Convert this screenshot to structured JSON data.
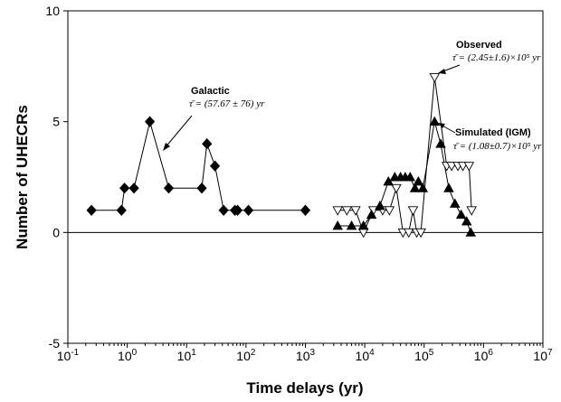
{
  "chart_data": {
    "type": "scatter",
    "xlabel": "Time delays (yr)",
    "ylabel": "Number of UHECRs",
    "xscale": "log",
    "xlim": [
      0.1,
      10000000
    ],
    "ylim": [
      -5,
      10
    ],
    "x_ticks": [
      "10-1",
      "100",
      "101",
      "102",
      "103",
      "104",
      "105",
      "106",
      "107"
    ],
    "y_ticks": [
      "-5",
      "0",
      "5",
      "10"
    ],
    "zero_line": true,
    "grid": false,
    "legend": "none",
    "annotations": [
      {
        "title": "Galactic",
        "formula": "τ̄ = (57.67 ± 76) yr"
      },
      {
        "title": "Observed",
        "formula": "τ̄ = (2.45±1.6)×10⁵ yr"
      },
      {
        "title": "Simulated (IGM)",
        "formula": "τ̄ = (1.08±0.7)×10⁵ yr"
      }
    ],
    "series": [
      {
        "marker": "diamond",
        "fill": "#000000",
        "x": [
          0.25,
          0.8,
          0.9,
          1.3,
          2.4,
          5.0,
          18.0,
          22.0,
          30.0,
          42.0,
          65.0,
          72.0,
          110.0,
          1000.0
        ],
        "y": [
          1,
          1,
          2,
          2,
          5,
          2,
          2,
          4,
          3,
          1,
          1,
          1,
          1,
          1
        ]
      },
      {
        "marker": "triangle-down",
        "fill": "#ffffff",
        "x": [
          3500,
          5000,
          7000,
          9500,
          14000,
          20000,
          26000,
          34000,
          44000,
          55000,
          65000,
          75000,
          88000,
          150000,
          240000,
          290000,
          370000,
          450000,
          570000,
          630000
        ],
        "y": [
          1,
          1,
          1,
          0,
          1,
          1,
          1,
          2,
          0,
          0,
          1,
          0,
          0,
          7,
          3,
          3,
          3,
          3,
          3,
          1
        ]
      },
      {
        "marker": "triangle-up",
        "fill": "#000000",
        "x": [
          3500,
          6000,
          9500,
          13000,
          18000,
          25000,
          32000,
          40000,
          48000,
          58000,
          70000,
          80000,
          95000,
          150000,
          190000,
          260000,
          330000,
          420000,
          520000,
          610000
        ],
        "y": [
          0.3,
          0.3,
          0.3,
          0.8,
          1.2,
          2.3,
          2.5,
          2.5,
          2.5,
          2.5,
          2.0,
          2.3,
          2.0,
          5.0,
          4.0,
          2.0,
          1.3,
          0.8,
          0.5,
          0.0
        ]
      }
    ]
  }
}
